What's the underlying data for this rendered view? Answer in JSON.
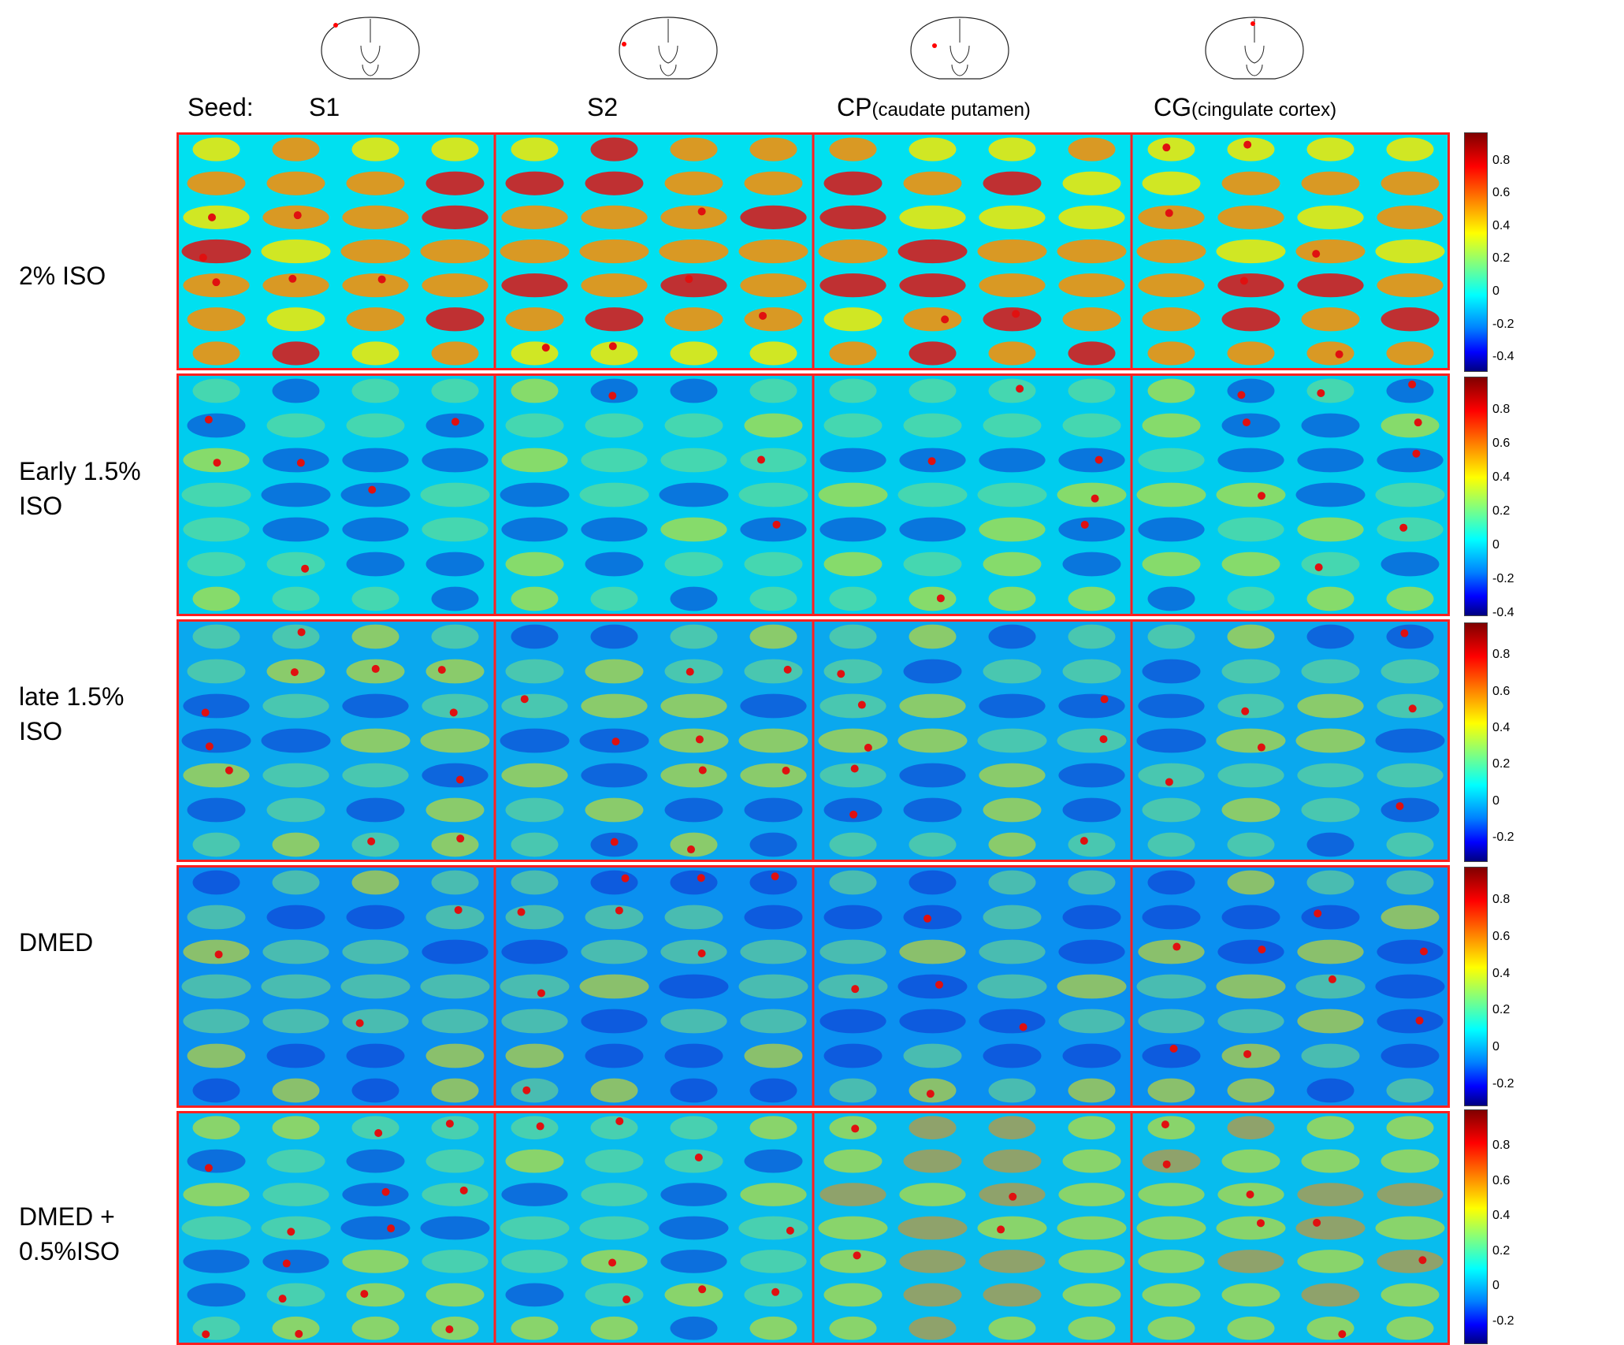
{
  "header": {
    "seed_label": "Seed:",
    "seeds": [
      {
        "name": "S1",
        "sub": ""
      },
      {
        "name": "S2",
        "sub": ""
      },
      {
        "name": "CP",
        "sub": "(caudate putamen)"
      },
      {
        "name": "CG",
        "sub": "(cingulate cortex)"
      }
    ]
  },
  "rows": [
    {
      "label_line1": "2% ISO",
      "label_line2": "",
      "bg": "#00e0f0",
      "colorbar_ticks": [
        "0.8",
        "0.6",
        "0.4",
        "0.2",
        "0",
        "-0.2",
        "-0.4"
      ]
    },
    {
      "label_line1": "Early 1.5%",
      "label_line2": "ISO",
      "bg": "#00ccee",
      "colorbar_ticks": [
        "0.8",
        "0.6",
        "0.4",
        "0.2",
        "0",
        "-0.2",
        "-0.4"
      ]
    },
    {
      "label_line1": "late 1.5%",
      "label_line2": "ISO",
      "bg": "#0aa8ee",
      "colorbar_ticks": [
        "0.8",
        "0.6",
        "0.4",
        "0.2",
        "0",
        "-0.2"
      ]
    },
    {
      "label_line1": "DMED",
      "label_line2": "",
      "bg": "#0a90f0",
      "colorbar_ticks": [
        "0.8",
        "0.6",
        "0.4",
        "0.2",
        "0",
        "-0.2"
      ]
    },
    {
      "label_line1": "DMED +",
      "label_line2": "0.5%ISO",
      "bg": "#08bcee",
      "colorbar_ticks": [
        "0.8",
        "0.6",
        "0.4",
        "0.2",
        "0",
        "-0.2"
      ]
    }
  ],
  "colors": {
    "divider": "#ff2020",
    "seed_marker": "#ff0000",
    "hot_red": "#e01010",
    "hot_orange": "#ff8c00",
    "hot_yellow": "#f4e800",
    "cold_blue": "#1030d0"
  }
}
